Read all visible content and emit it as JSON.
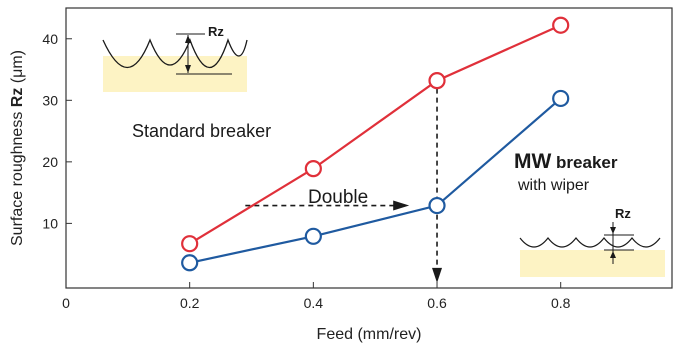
{
  "chart_data": {
    "type": "line",
    "xlabel": "Feed (mm/rev)",
    "ylabel": {
      "prefix": "Surface roughness ",
      "bold": "Rz",
      "suffix": " (μm)"
    },
    "xlim": [
      0,
      0.98
    ],
    "ylim": [
      -0.5,
      45
    ],
    "x_ticks": [
      {
        "value": 0,
        "label": "0"
      },
      {
        "value": 0.2,
        "label": "0.2"
      },
      {
        "value": 0.4,
        "label": "0.4"
      },
      {
        "value": 0.6,
        "label": "0.6"
      },
      {
        "value": 0.8,
        "label": "0.8"
      }
    ],
    "y_ticks": [
      {
        "value": 10,
        "label": "10"
      },
      {
        "value": 20,
        "label": "20"
      },
      {
        "value": 30,
        "label": "30"
      },
      {
        "value": 40,
        "label": "40"
      }
    ],
    "x": [
      0.2,
      0.4,
      0.6,
      0.8
    ],
    "series": [
      {
        "key": "standard",
        "color": "#e0303a",
        "values": [
          6.7,
          18.9,
          33.2,
          42.2
        ]
      },
      {
        "key": "mw",
        "color": "#1f5aa0",
        "values": [
          3.6,
          7.9,
          12.9,
          30.3
        ]
      }
    ],
    "annotations": {
      "standard_label": "Standard breaker",
      "mw_bold": "MW",
      "mw_rest": " breaker",
      "mw_sub": "with wiper",
      "double_label": "Double",
      "rz_label_top": "Rz",
      "rz_label_bottom": "Rz",
      "double_arrow": {
        "from": [
          0.29,
          12.9
        ],
        "to": [
          0.555,
          12.9
        ]
      },
      "drop_arrow": {
        "x": 0.6,
        "from": 33.2,
        "to": 0
      }
    },
    "grid": false,
    "legend": "none",
    "inset_fill": "#fdf3c4"
  }
}
